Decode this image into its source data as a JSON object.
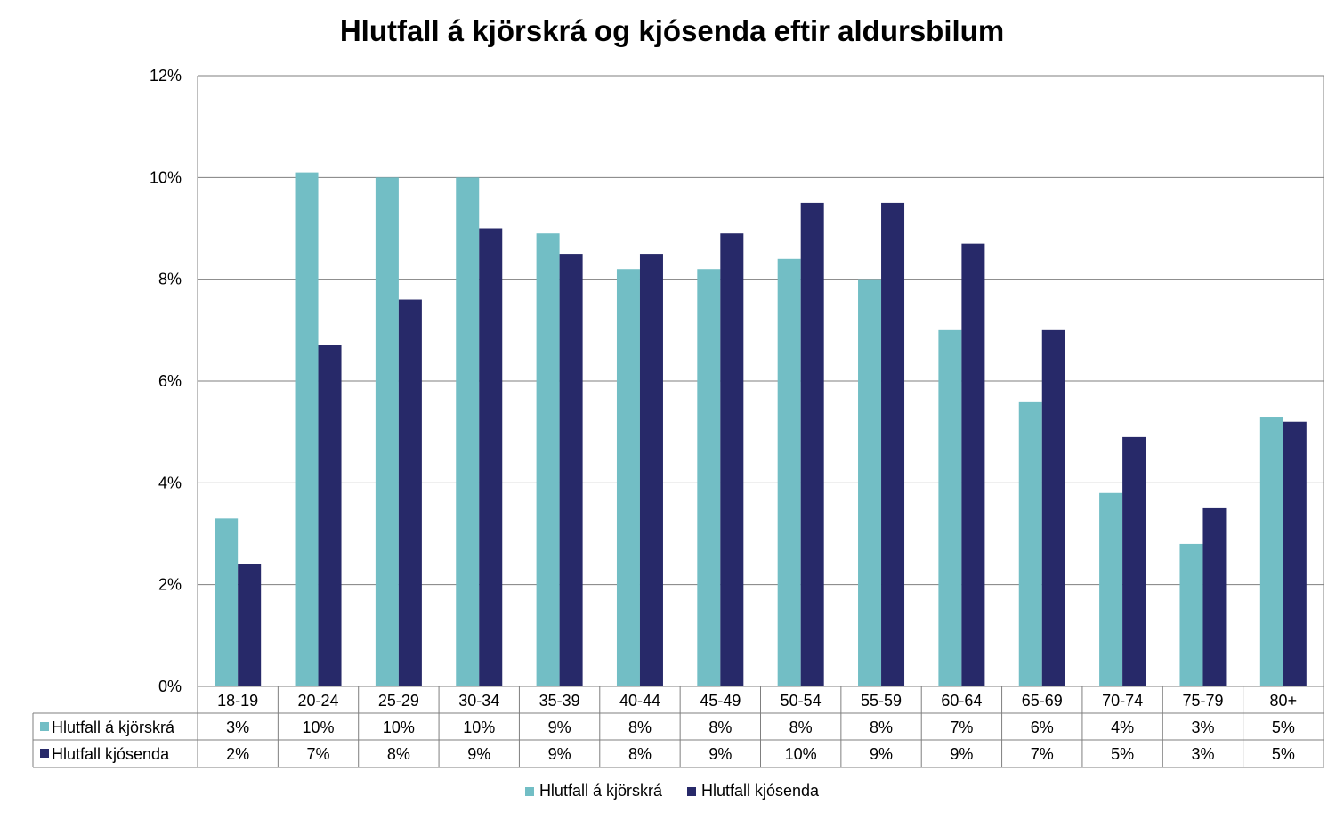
{
  "chart_data": {
    "type": "bar",
    "title": "Hlutfall á kjörskrá og kjósenda eftir aldursbilum",
    "categories": [
      "18-19",
      "20-24",
      "25-29",
      "30-34",
      "35-39",
      "40-44",
      "45-49",
      "50-54",
      "55-59",
      "60-64",
      "65-69",
      "70-74",
      "75-79",
      "80+"
    ],
    "series": [
      {
        "name": "Hlutfall á kjörskrá",
        "color": "#72bec5",
        "values": [
          3.3,
          10.1,
          10.0,
          10.0,
          8.9,
          8.2,
          8.2,
          8.4,
          8.0,
          7.0,
          5.6,
          3.8,
          2.8,
          5.3
        ],
        "table_labels": [
          "3%",
          "10%",
          "10%",
          "10%",
          "9%",
          "8%",
          "8%",
          "8%",
          "8%",
          "7%",
          "6%",
          "4%",
          "3%",
          "5%"
        ]
      },
      {
        "name": "Hlutfall kjósenda",
        "color": "#272969",
        "values": [
          2.4,
          6.7,
          7.6,
          9.0,
          8.5,
          8.5,
          8.9,
          9.5,
          9.5,
          8.7,
          7.0,
          4.9,
          3.5,
          5.2
        ],
        "table_labels": [
          "2%",
          "7%",
          "8%",
          "9%",
          "9%",
          "8%",
          "9%",
          "10%",
          "9%",
          "9%",
          "7%",
          "5%",
          "3%",
          "5%"
        ]
      }
    ],
    "ylim": [
      0,
      12
    ],
    "yticks": [
      "0%",
      "2%",
      "4%",
      "6%",
      "8%",
      "10%",
      "12%"
    ],
    "grid": true,
    "data_table": true,
    "legend": "bottom"
  }
}
